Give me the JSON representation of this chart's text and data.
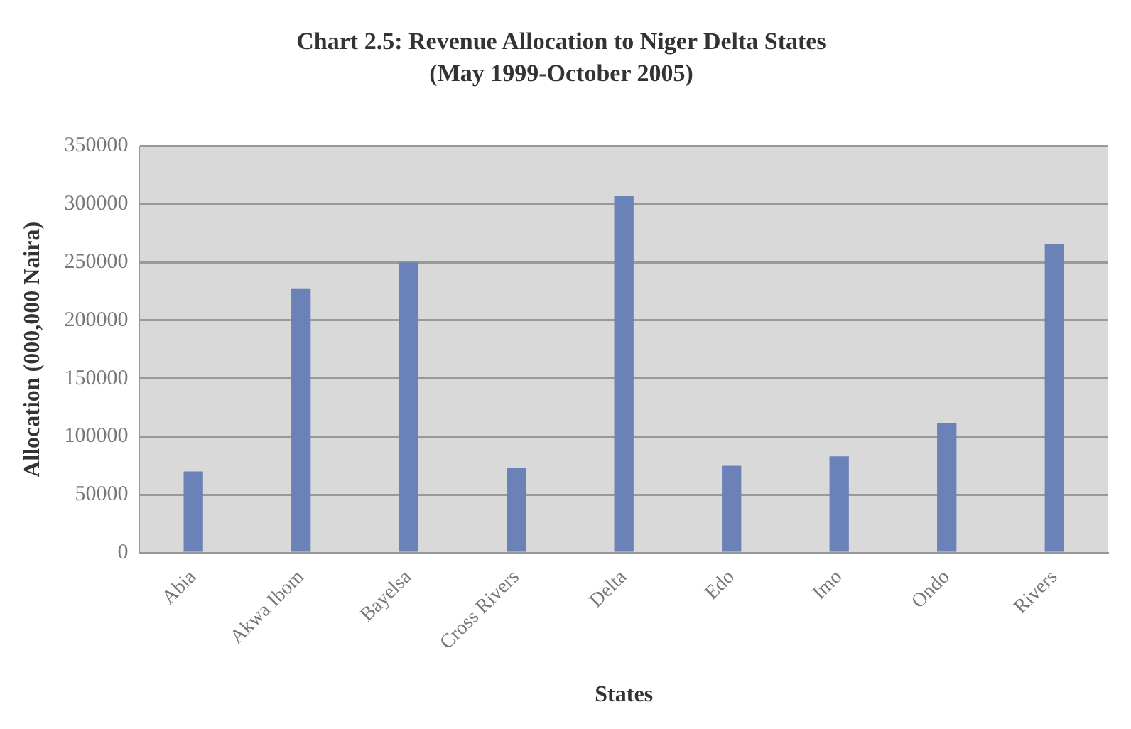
{
  "chart_data": {
    "type": "bar",
    "title": "Chart 2.5: Revenue Allocation to Niger Delta States",
    "subtitle": "(May 1999-October 2005)",
    "xlabel": "States",
    "ylabel": "Allocation (000,000 Naira)",
    "categories": [
      "Abia",
      "Akwa Ibom",
      "Bayelsa",
      "Cross Rivers",
      "Delta",
      "Edo",
      "Imo",
      "Ondo",
      "Rivers"
    ],
    "values": [
      70000,
      227000,
      250000,
      73000,
      307000,
      75000,
      83000,
      112000,
      266000
    ],
    "color": "#6a82b8",
    "ylim": [
      0,
      350000
    ],
    "yticks": [
      0,
      50000,
      100000,
      150000,
      200000,
      250000,
      300000,
      350000
    ],
    "grid": "y"
  }
}
